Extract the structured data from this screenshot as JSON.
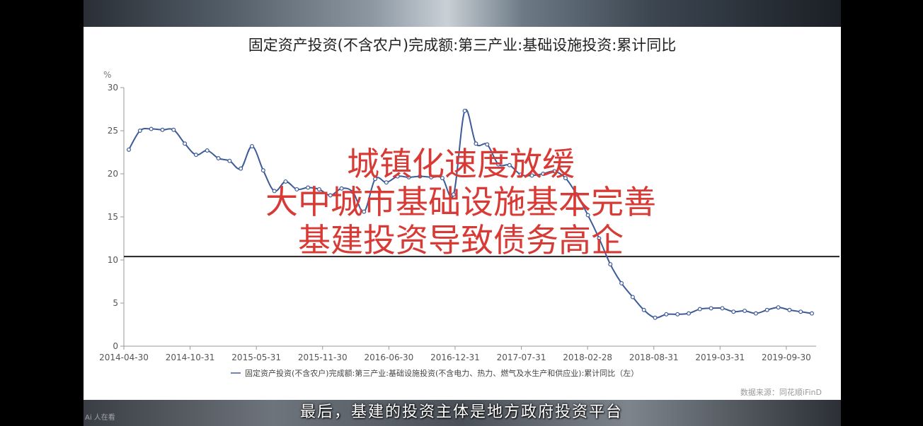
{
  "overlay_lines": [
    "城镇化速度放缓",
    "大中城市基础设施基本完善",
    "基建投资导致债务高企"
  ],
  "caption": "最后，基建的投资主体是地方政府投资平台",
  "watermark": "Ai 人在看",
  "colors": {
    "line": "#3d5a99",
    "overlay": "#d83a35",
    "refline": "#222222"
  },
  "chart_data": {
    "type": "line",
    "title": "固定资产投资(不含农户)完成额:第三产业:基础设施投资:累计同比",
    "ylabel": "%",
    "ylim": [
      0,
      30
    ],
    "yticks": [
      0,
      5,
      10,
      15,
      20,
      25,
      30
    ],
    "xticks": [
      "2014-04-30",
      "2014-10-31",
      "2015-05-31",
      "2015-11-30",
      "2016-06-30",
      "2016-12-31",
      "2017-07-31",
      "2018-02-28",
      "2018-08-31",
      "2019-03-31",
      "2019-09-30"
    ],
    "reference_line": 10.4,
    "legend": "固定资产投资(不含农户)完成额:第三产业:基础设施投资(不含电力、热力、燃气及水生产和供应业):累计同比（左）",
    "source": "数据来源：同花顺iFinD",
    "series": [
      {
        "values": [
          22.8,
          25.0,
          25.2,
          25.1,
          25.1,
          23.5,
          22.2,
          22.7,
          21.8,
          21.5,
          20.6,
          23.2,
          20.4,
          18.0,
          19.1,
          18.2,
          18.4,
          18.2,
          17.5,
          18.3,
          17.9,
          15.6,
          19.4,
          19.0,
          19.7,
          19.6,
          19.7,
          19.6,
          19.5,
          17.6,
          27.3,
          23.5,
          23.4,
          21.1,
          21.0,
          19.9,
          19.8,
          20.0,
          20.3,
          19.5,
          17.6,
          15.2,
          12.5,
          9.5,
          7.3,
          5.7,
          4.2,
          3.3,
          3.7,
          3.7,
          3.8,
          4.3,
          4.4,
          4.4,
          4.0,
          4.1,
          3.8,
          4.2,
          4.5,
          4.2,
          4.0,
          3.8
        ]
      }
    ]
  }
}
